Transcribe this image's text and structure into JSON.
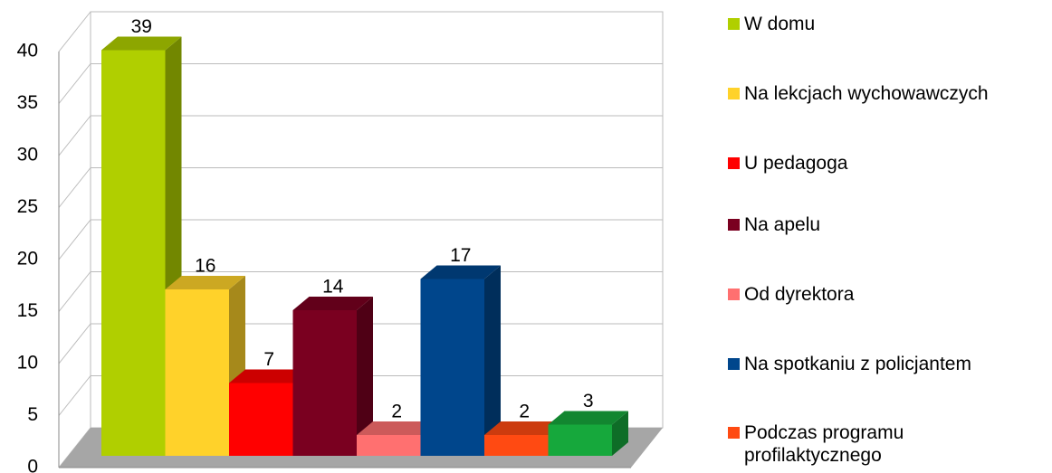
{
  "chart_data": {
    "type": "bar3d",
    "categories": [
      "W domu",
      "Na lekcjach wychowawczych",
      "U pedagoga",
      "Na apelu",
      "Od dyrektora",
      "Na spotkaniu z policjantem",
      "Podczas programu profilaktycznego",
      null
    ],
    "values": [
      39,
      16,
      7,
      14,
      2,
      17,
      2,
      3
    ],
    "colors": [
      "#b0cf00",
      "#ffd22a",
      "#ff0000",
      "#7a0020",
      "#ff7070",
      "#00468c",
      "#ff4a12",
      "#16a83c"
    ],
    "ylim": [
      0,
      40
    ],
    "yticks": [
      0,
      5,
      10,
      15,
      20,
      25,
      30,
      35,
      40
    ],
    "grid": true,
    "legend": "right"
  }
}
